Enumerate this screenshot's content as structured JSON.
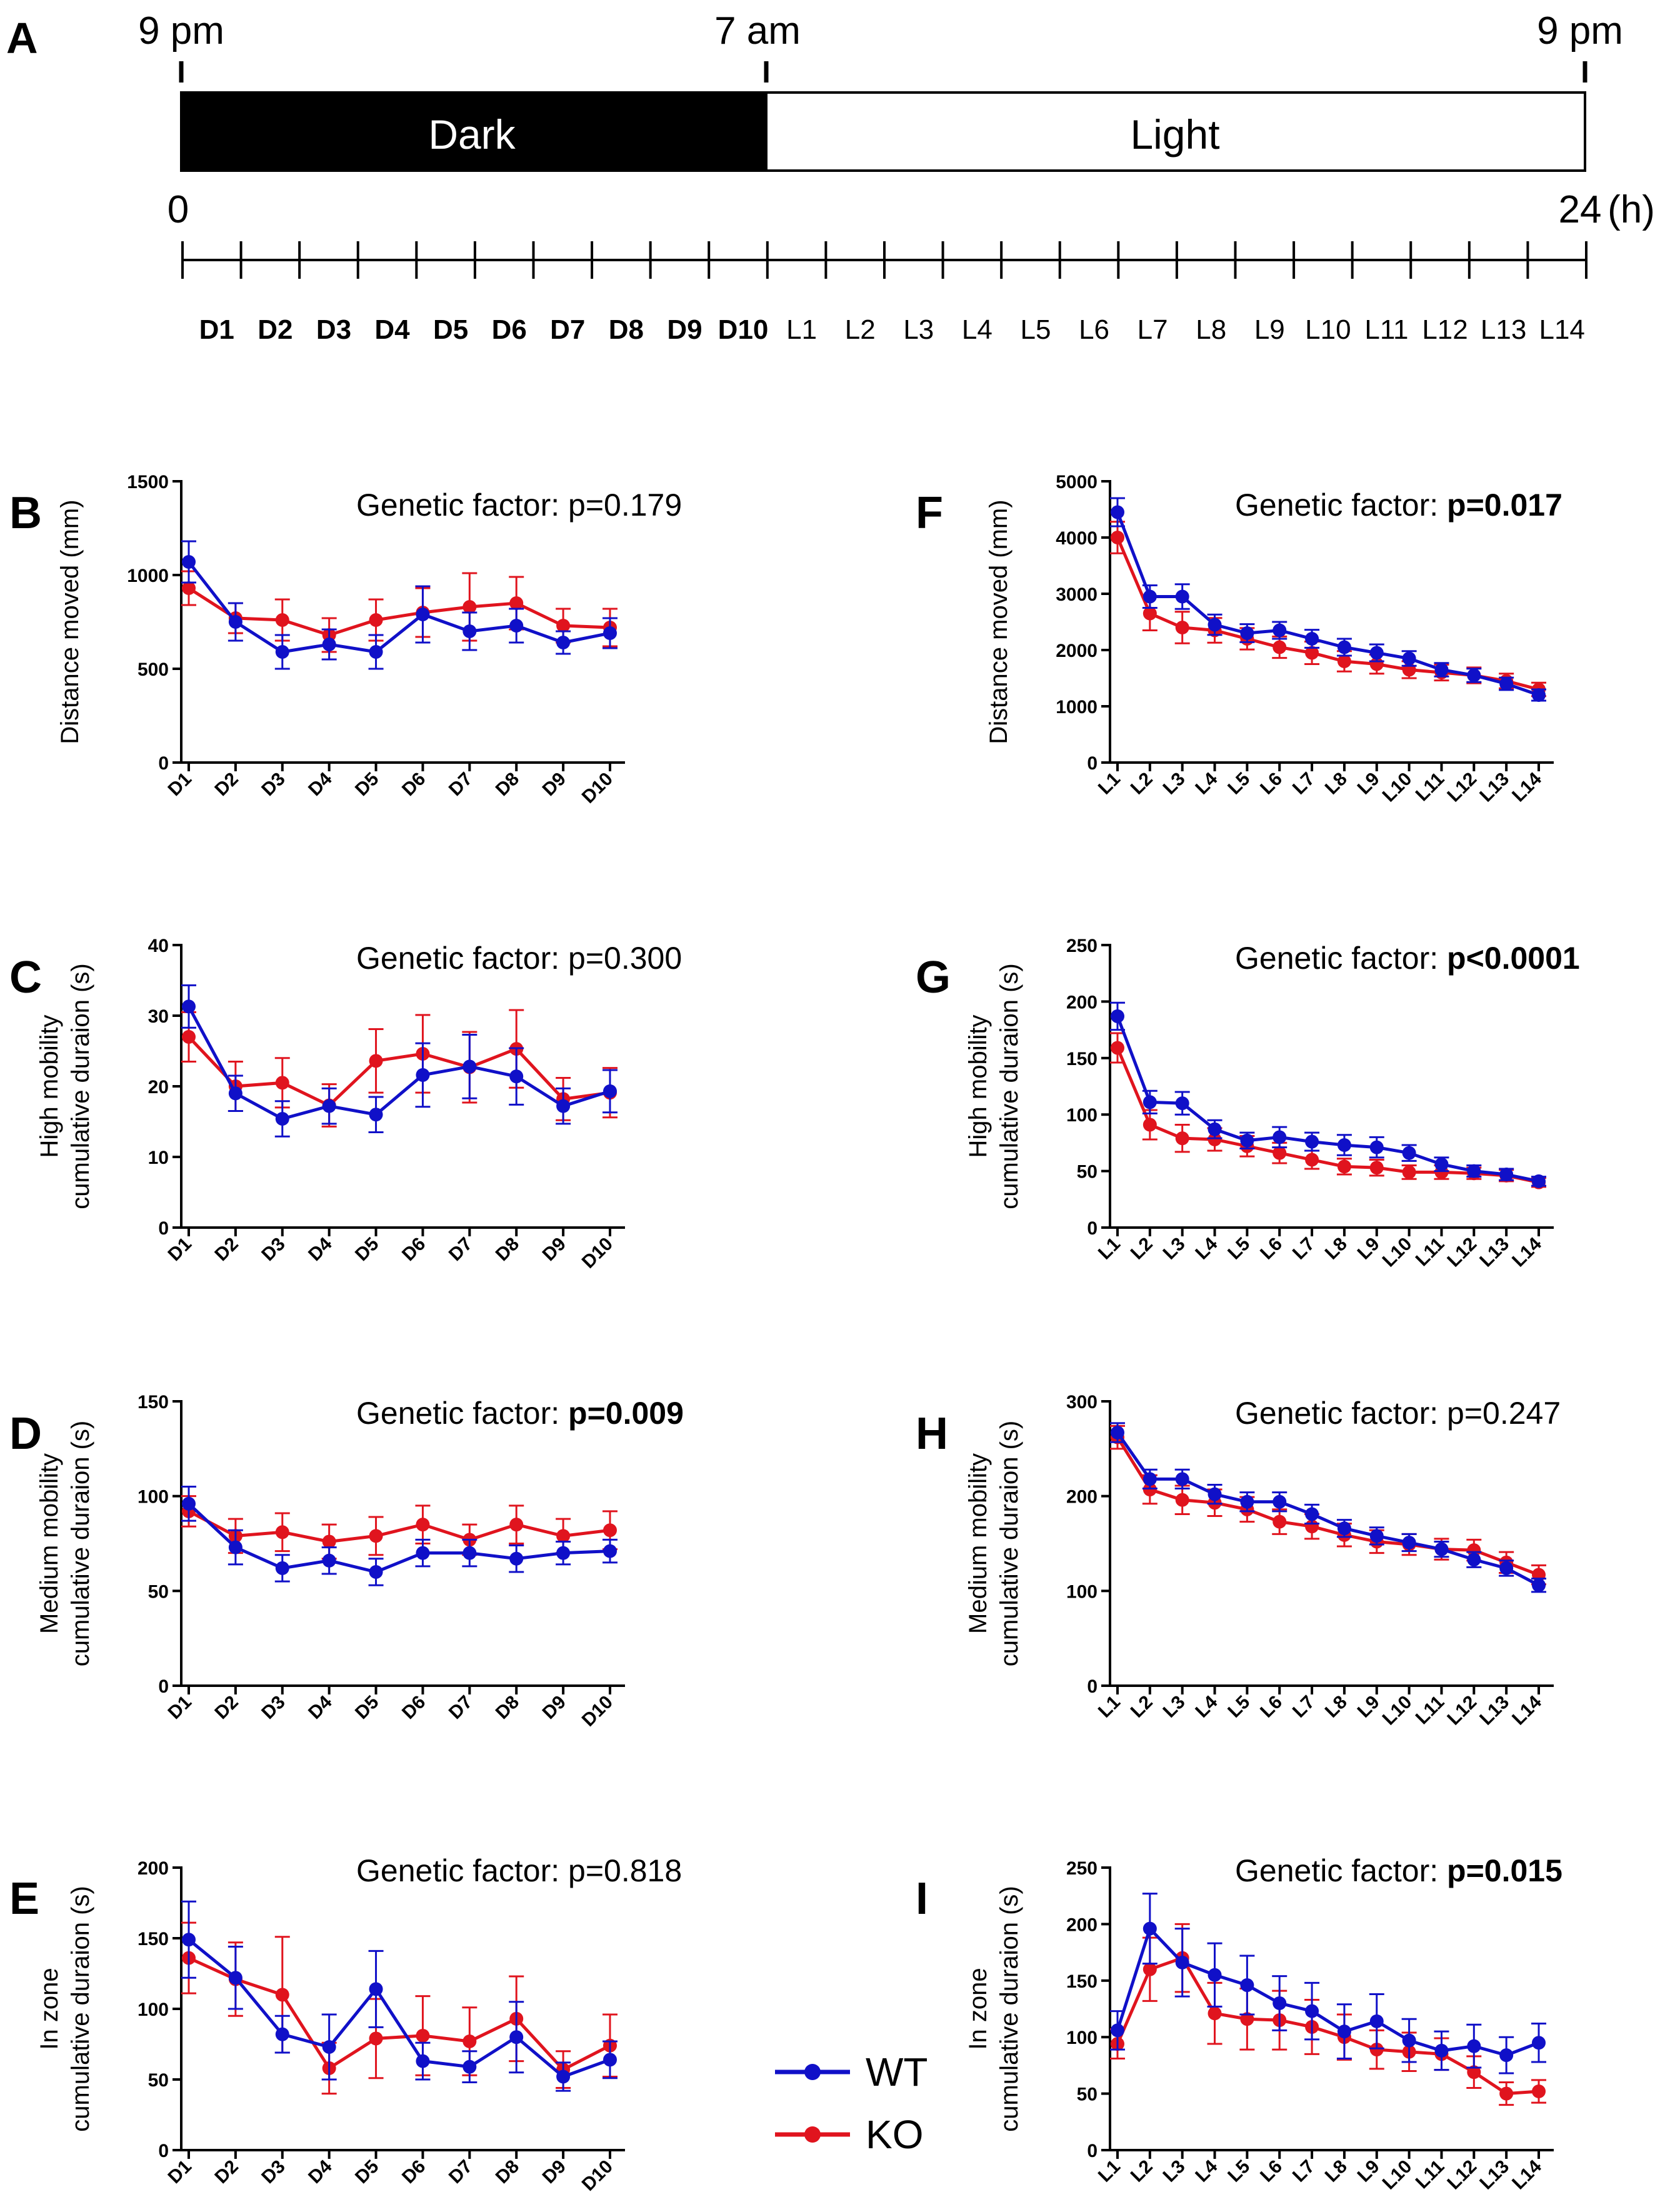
{
  "colors": {
    "wt": "#1010c8",
    "ko": "#e0141e",
    "axis": "#000000",
    "dark_bar": "#000000",
    "light_bar": "#ffffff"
  },
  "timeline": {
    "panel_letter": "A",
    "time_start": "9 pm",
    "time_mid": "7 am",
    "time_end": "9 pm",
    "dark_label": "Dark",
    "light_label": "Light",
    "hour_start": "0",
    "hour_end": "24",
    "hour_unit": "(h)",
    "dark_bins": [
      "D1",
      "D2",
      "D3",
      "D4",
      "D5",
      "D6",
      "D7",
      "D8",
      "D9",
      "D10"
    ],
    "light_bins": [
      "L1",
      "L2",
      "L3",
      "L4",
      "L5",
      "L6",
      "L7",
      "L8",
      "L9",
      "L10",
      "L11",
      "L12",
      "L13",
      "L14"
    ]
  },
  "legend": {
    "wt": "WT",
    "ko": "KO"
  },
  "chart_data": [
    {
      "panel": "B",
      "type": "line",
      "phase": "dark",
      "annotation_prefix": "Genetic factor: ",
      "p_value": "p=0.179",
      "p_bold": false,
      "ylabel": [
        "Distance moved  (mm)"
      ],
      "categories": [
        "D1",
        "D2",
        "D3",
        "D4",
        "D5",
        "D6",
        "D7",
        "D8",
        "D9",
        "D10"
      ],
      "ylim": [
        0,
        1500
      ],
      "yticks": [
        0,
        500,
        1000,
        1500
      ],
      "series": [
        {
          "name": "WT",
          "values": [
            1070,
            750,
            590,
            630,
            590,
            790,
            700,
            730,
            640,
            690
          ],
          "errors": [
            110,
            100,
            90,
            80,
            90,
            150,
            100,
            90,
            60,
            80
          ]
        },
        {
          "name": "KO",
          "values": [
            930,
            770,
            760,
            680,
            760,
            800,
            830,
            850,
            730,
            720
          ],
          "errors": [
            90,
            80,
            110,
            90,
            110,
            130,
            180,
            140,
            90,
            100
          ]
        }
      ]
    },
    {
      "panel": "C",
      "type": "line",
      "phase": "dark",
      "annotation_prefix": "Genetic factor: ",
      "p_value": "p=0.300",
      "p_bold": false,
      "ylabel": [
        "High mobility",
        "cumulative duraion (s)"
      ],
      "categories": [
        "D1",
        "D2",
        "D3",
        "D4",
        "D5",
        "D6",
        "D7",
        "D8",
        "D9",
        "D10"
      ],
      "ylim": [
        0,
        40
      ],
      "yticks": [
        0,
        10,
        20,
        30,
        40
      ],
      "series": [
        {
          "name": "WT",
          "values": [
            31.3,
            19,
            15.4,
            17.2,
            16,
            21.6,
            22.8,
            21.4,
            17.2,
            19.3
          ],
          "errors": [
            3,
            2.5,
            2.5,
            2.5,
            2.5,
            4.5,
            4.5,
            4,
            2.5,
            3
          ]
        },
        {
          "name": "KO",
          "values": [
            27,
            20,
            20.5,
            17.3,
            23.6,
            24.6,
            22.7,
            25.3,
            18.2,
            19.1
          ],
          "errors": [
            3.5,
            3.5,
            3.5,
            3,
            4.5,
            5.5,
            5,
            5.5,
            3,
            3.5
          ]
        }
      ]
    },
    {
      "panel": "D",
      "type": "line",
      "phase": "dark",
      "annotation_prefix": "Genetic factor: ",
      "p_value": "p=0.009",
      "p_bold": true,
      "ylabel": [
        "Medium mobility",
        "cumulative duraion (s)"
      ],
      "categories": [
        "D1",
        "D2",
        "D3",
        "D4",
        "D5",
        "D6",
        "D7",
        "D8",
        "D9",
        "D10"
      ],
      "ylim": [
        0,
        150
      ],
      "yticks": [
        0,
        50,
        100,
        150
      ],
      "series": [
        {
          "name": "WT",
          "values": [
            96,
            73,
            62,
            66,
            60,
            70,
            70,
            67,
            70,
            71
          ],
          "errors": [
            9,
            9,
            7,
            7,
            7,
            7,
            7,
            7,
            6,
            6
          ]
        },
        {
          "name": "KO",
          "values": [
            92,
            79,
            81,
            76,
            79,
            85,
            77,
            85,
            79,
            82
          ],
          "errors": [
            8,
            9,
            10,
            9,
            10,
            10,
            8,
            10,
            9,
            10
          ]
        }
      ]
    },
    {
      "panel": "E",
      "type": "line",
      "phase": "dark",
      "annotation_prefix": "Genetic factor: ",
      "p_value": "p=0.818",
      "p_bold": false,
      "ylabel": [
        "In zone",
        "cumulative duraion (s)"
      ],
      "categories": [
        "D1",
        "D2",
        "D3",
        "D4",
        "D5",
        "D6",
        "D7",
        "D8",
        "D9",
        "D10"
      ],
      "ylim": [
        0,
        200
      ],
      "yticks": [
        0,
        50,
        100,
        150,
        200
      ],
      "series": [
        {
          "name": "WT",
          "values": [
            149,
            122,
            82,
            73,
            114,
            63,
            59,
            80,
            52,
            64
          ],
          "errors": [
            27,
            22,
            13,
            23,
            27,
            13,
            11,
            25,
            10,
            13
          ]
        },
        {
          "name": "KO",
          "values": [
            136,
            121,
            110,
            58,
            79,
            81,
            77,
            93,
            57,
            74
          ],
          "errors": [
            25,
            26,
            41,
            18,
            28,
            28,
            24,
            30,
            13,
            22
          ]
        }
      ]
    },
    {
      "panel": "F",
      "type": "line",
      "phase": "light",
      "annotation_prefix": "Genetic factor: ",
      "p_value": "p=0.017",
      "p_bold": true,
      "ylabel": [
        "Distance moved  (mm)"
      ],
      "categories": [
        "L1",
        "L2",
        "L3",
        "L4",
        "L5",
        "L6",
        "L7",
        "L8",
        "L9",
        "L10",
        "L11",
        "L12",
        "L13",
        "L14"
      ],
      "ylim": [
        0,
        5000
      ],
      "yticks": [
        0,
        1000,
        2000,
        3000,
        4000,
        5000
      ],
      "series": [
        {
          "name": "WT",
          "values": [
            4450,
            2950,
            2950,
            2450,
            2300,
            2350,
            2200,
            2050,
            1950,
            1850,
            1650,
            1550,
            1400,
            1200
          ],
          "errors": [
            250,
            200,
            220,
            180,
            160,
            150,
            160,
            150,
            150,
            130,
            120,
            120,
            110,
            100
          ]
        },
        {
          "name": "KO",
          "values": [
            4000,
            2650,
            2400,
            2350,
            2200,
            2050,
            1950,
            1800,
            1750,
            1650,
            1600,
            1550,
            1450,
            1300
          ],
          "errors": [
            280,
            300,
            280,
            220,
            190,
            190,
            200,
            180,
            170,
            150,
            140,
            140,
            130,
            120
          ]
        }
      ]
    },
    {
      "panel": "G",
      "type": "line",
      "phase": "light",
      "annotation_prefix": "Genetic factor: ",
      "p_value": "p<0.0001",
      "p_bold": true,
      "ylabel": [
        "High mobility",
        "cumulative duraion (s)"
      ],
      "categories": [
        "L1",
        "L2",
        "L3",
        "L4",
        "L5",
        "L6",
        "L7",
        "L8",
        "L9",
        "L10",
        "L11",
        "L12",
        "L13",
        "L14"
      ],
      "ylim": [
        0,
        250
      ],
      "yticks": [
        0,
        50,
        100,
        150,
        200,
        250
      ],
      "series": [
        {
          "name": "WT",
          "values": [
            187,
            111,
            110,
            87,
            77,
            80,
            76,
            73,
            71,
            66,
            56,
            50,
            47,
            41
          ],
          "errors": [
            12,
            10,
            10,
            8,
            7,
            9,
            8,
            9,
            9,
            7,
            6,
            5,
            5,
            4
          ]
        },
        {
          "name": "KO",
          "values": [
            159,
            91,
            79,
            78,
            72,
            66,
            60,
            54,
            53,
            49,
            49,
            48,
            46,
            40
          ],
          "errors": [
            13,
            13,
            12,
            10,
            9,
            9,
            8,
            7,
            7,
            6,
            6,
            5,
            5,
            4
          ]
        }
      ]
    },
    {
      "panel": "H",
      "type": "line",
      "phase": "light",
      "annotation_prefix": "Genetic factor: ",
      "p_value": "p=0.247",
      "p_bold": false,
      "ylabel": [
        "Medium mobility",
        "cumulative duraion (s)"
      ],
      "categories": [
        "L1",
        "L2",
        "L3",
        "L4",
        "L5",
        "L6",
        "L7",
        "L8",
        "L9",
        "L10",
        "L11",
        "L12",
        "L13",
        "L14"
      ],
      "ylim": [
        0,
        300
      ],
      "yticks": [
        0,
        100,
        200,
        300
      ],
      "series": [
        {
          "name": "WT",
          "values": [
            267,
            218,
            218,
            202,
            194,
            194,
            181,
            166,
            158,
            151,
            144,
            133,
            124,
            106
          ],
          "errors": [
            10,
            10,
            10,
            10,
            10,
            10,
            10,
            9,
            9,
            9,
            8,
            8,
            8,
            7
          ]
        },
        {
          "name": "KO",
          "values": [
            262,
            207,
            196,
            193,
            186,
            173,
            168,
            159,
            152,
            149,
            144,
            143,
            130,
            117
          ],
          "errors": [
            12,
            15,
            15,
            14,
            13,
            13,
            13,
            12,
            12,
            11,
            11,
            11,
            11,
            10
          ]
        }
      ]
    },
    {
      "panel": "I",
      "type": "line",
      "phase": "light",
      "annotation_prefix": "Genetic factor: ",
      "p_value": "p=0.015",
      "p_bold": true,
      "ylabel": [
        "In zone",
        "cumulative duraion (s)"
      ],
      "categories": [
        "L1",
        "L2",
        "L3",
        "L4",
        "L5",
        "L6",
        "L7",
        "L8",
        "L9",
        "L10",
        "L11",
        "L12",
        "L13",
        "L14"
      ],
      "ylim": [
        0,
        250
      ],
      "yticks": [
        0,
        50,
        100,
        150,
        200,
        250
      ],
      "series": [
        {
          "name": "WT",
          "values": [
            106,
            196,
            166,
            155,
            146,
            130,
            123,
            105,
            114,
            97,
            88,
            92,
            84,
            95
          ],
          "errors": [
            17,
            31,
            30,
            28,
            26,
            24,
            25,
            24,
            24,
            19,
            17,
            19,
            16,
            17
          ]
        },
        {
          "name": "KO",
          "values": [
            94,
            160,
            170,
            121,
            116,
            115,
            109,
            100,
            89,
            87,
            85,
            69,
            50,
            52
          ],
          "errors": [
            13,
            28,
            30,
            27,
            27,
            26,
            24,
            20,
            17,
            17,
            14,
            14,
            10,
            10
          ]
        }
      ]
    }
  ]
}
